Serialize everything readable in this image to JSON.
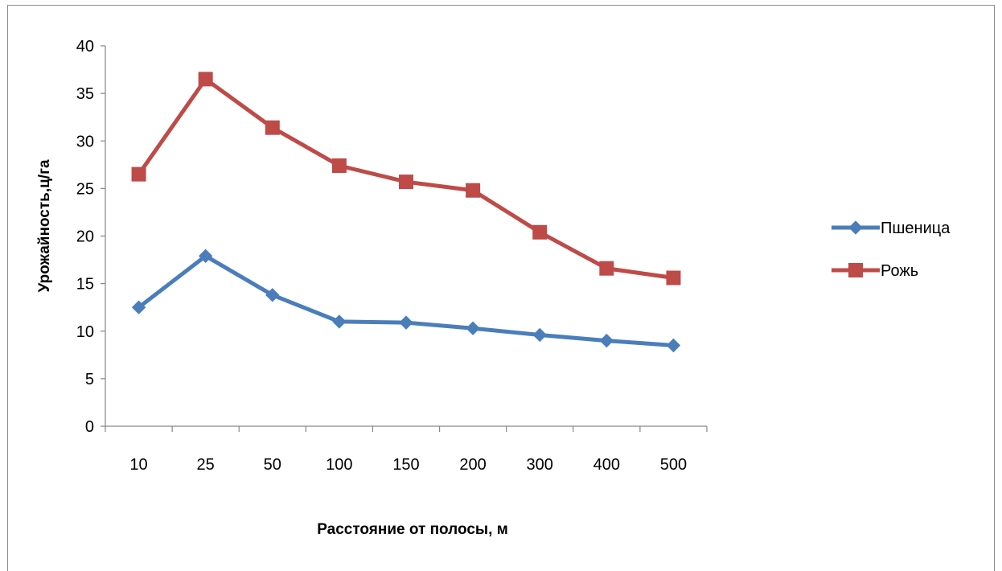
{
  "chart_data": {
    "type": "line",
    "categories": [
      "10",
      "25",
      "50",
      "100",
      "150",
      "200",
      "300",
      "400",
      "500"
    ],
    "series": [
      {
        "name": "Пшеница",
        "values": [
          12.5,
          17.9,
          13.8,
          11.0,
          10.9,
          10.3,
          9.6,
          9.0,
          8.5
        ],
        "color": "#4a7ebb",
        "marker": "diamond"
      },
      {
        "name": "Рожь",
        "values": [
          26.5,
          36.5,
          31.4,
          27.4,
          25.7,
          24.8,
          20.4,
          16.6,
          15.6
        ],
        "color": "#be4b48",
        "marker": "square"
      }
    ],
    "xlabel": "Расстояние от полосы, м",
    "ylabel": "Урожайность,ц/га",
    "ylim": [
      0,
      40
    ],
    "yticks": [
      0,
      5,
      10,
      15,
      20,
      25,
      30,
      35,
      40
    ],
    "grid": false,
    "legend_position": "right"
  }
}
